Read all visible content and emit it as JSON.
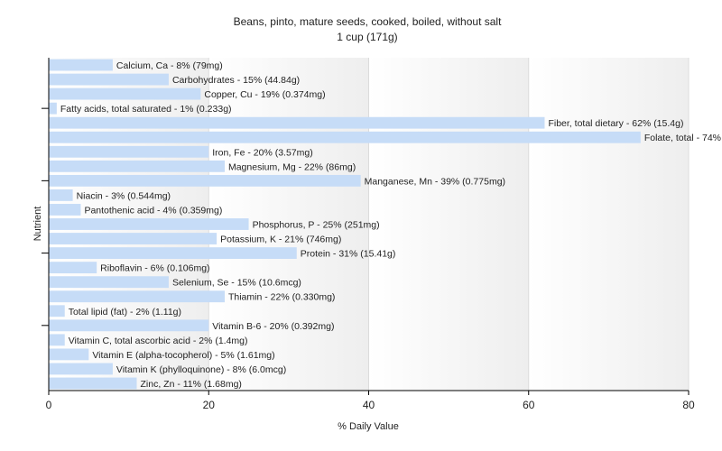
{
  "chart_data": {
    "type": "bar",
    "orientation": "horizontal",
    "title": "Beans, pinto, mature seeds, cooked, boiled, without salt",
    "subtitle": "1 cup (171g)",
    "xlabel": "% Daily Value",
    "ylabel": "Nutrient",
    "xlim": [
      0,
      80
    ],
    "xticks": [
      "0",
      "20",
      "40",
      "60",
      "80"
    ],
    "grid": true,
    "legend": "none",
    "bar_color": "#c6dcf7",
    "categories": [
      "Calcium, Ca - 8% (79mg)",
      "Carbohydrates - 15% (44.84g)",
      "Copper, Cu - 19% (0.374mg)",
      "Fatty acids, total saturated - 1% (0.233g)",
      "Fiber, total dietary - 62% (15.4g)",
      "Folate, total - 74% (294mcg)",
      "Iron, Fe - 20% (3.57mg)",
      "Magnesium, Mg - 22% (86mg)",
      "Manganese, Mn - 39% (0.775mg)",
      "Niacin - 3% (0.544mg)",
      "Pantothenic acid - 4% (0.359mg)",
      "Phosphorus, P - 25% (251mg)",
      "Potassium, K - 21% (746mg)",
      "Protein - 31% (15.41g)",
      "Riboflavin - 6% (0.106mg)",
      "Selenium, Se - 15% (10.6mcg)",
      "Thiamin - 22% (0.330mg)",
      "Total lipid (fat) - 2% (1.11g)",
      "Vitamin B-6 - 20% (0.392mg)",
      "Vitamin C, total ascorbic acid - 2% (1.4mg)",
      "Vitamin E (alpha-tocopherol) - 5% (1.61mg)",
      "Vitamin K (phylloquinone) - 8% (6.0mcg)",
      "Zinc, Zn - 11% (1.68mg)"
    ],
    "values": [
      8,
      15,
      19,
      1,
      62,
      74,
      20,
      22,
      39,
      3,
      4,
      25,
      21,
      31,
      6,
      15,
      22,
      2,
      20,
      2,
      5,
      8,
      11
    ]
  }
}
